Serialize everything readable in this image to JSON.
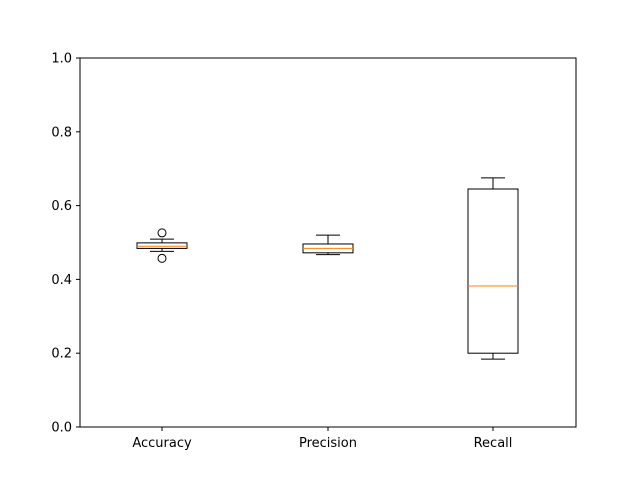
{
  "chart_data": {
    "type": "box",
    "categories": [
      "Accuracy",
      "Precision",
      "Recall"
    ],
    "boxes": [
      {
        "category": "Accuracy",
        "whisker_low": 0.476,
        "q1": 0.484,
        "median": 0.49,
        "q3": 0.499,
        "whisker_high": 0.509,
        "outliers": [
          0.526,
          0.457
        ]
      },
      {
        "category": "Precision",
        "whisker_low": 0.467,
        "q1": 0.472,
        "median": 0.484,
        "q3": 0.496,
        "whisker_high": 0.52,
        "outliers": []
      },
      {
        "category": "Recall",
        "whisker_low": 0.184,
        "q1": 0.2,
        "median": 0.382,
        "q3": 0.645,
        "whisker_high": 0.675,
        "outliers": []
      }
    ],
    "yticks": [
      "0.0",
      "0.2",
      "0.4",
      "0.6",
      "0.8",
      "1.0"
    ],
    "ylim": [
      0.0,
      1.0
    ],
    "title": "",
    "xlabel": "",
    "ylabel": "",
    "grid": false,
    "colors": {
      "box": "#000000",
      "median": "#ff7f0e",
      "axes": "#000000",
      "background": "#ffffff"
    }
  }
}
